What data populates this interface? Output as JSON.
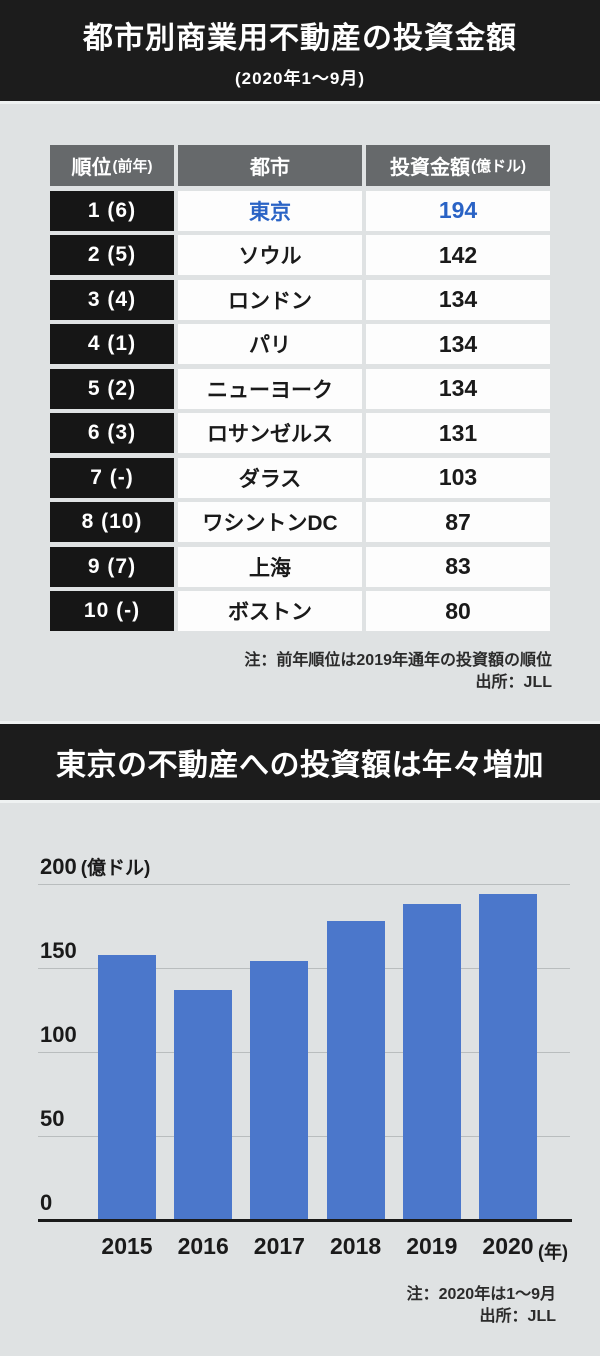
{
  "colors": {
    "page_bg": "#dfe2e3",
    "banner_bg": "#1c1c1c",
    "table_header_bg": "#66696b",
    "rank_cell_bg": "#161616",
    "highlight_blue": "#2a63c5",
    "bar_blue": "#4b77cb"
  },
  "header": {
    "title": "都市別商業用不動産の投資金額",
    "subtitle": "(2020年1～9月)"
  },
  "table": {
    "headers": [
      {
        "main": "順位",
        "sub": "(前年)"
      },
      {
        "main": "都市",
        "sub": ""
      },
      {
        "main": "投資金額",
        "sub": "(億ドル)"
      }
    ],
    "rows": [
      {
        "rank": "1 (6)",
        "city": "東京",
        "value": "194",
        "highlight": true
      },
      {
        "rank": "2 (5)",
        "city": "ソウル",
        "value": "142",
        "highlight": false
      },
      {
        "rank": "3 (4)",
        "city": "ロンドン",
        "value": "134",
        "highlight": false
      },
      {
        "rank": "4 (1)",
        "city": "パリ",
        "value": "134",
        "highlight": false
      },
      {
        "rank": "5 (2)",
        "city": "ニューヨーク",
        "value": "134",
        "highlight": false
      },
      {
        "rank": "6 (3)",
        "city": "ロサンゼルス",
        "value": "131",
        "highlight": false
      },
      {
        "rank": "7 (-)",
        "city": "ダラス",
        "value": "103",
        "highlight": false
      },
      {
        "rank": "8 (10)",
        "city": "ワシントンDC",
        "value": "87",
        "highlight": false
      },
      {
        "rank": "9 (7)",
        "city": "上海",
        "value": "83",
        "highlight": false
      },
      {
        "rank": "10 (-)",
        "city": "ボストン",
        "value": "80",
        "highlight": false
      }
    ],
    "notes": [
      "注：前年順位は2019年通年の投資額の順位",
      "出所：JLL"
    ]
  },
  "chart_data": {
    "type": "bar",
    "title": "東京の不動産への投資額は年々増加",
    "categories": [
      "2015",
      "2016",
      "2017",
      "2018",
      "2019",
      "2020"
    ],
    "values": [
      158,
      137,
      154,
      178,
      188,
      194
    ],
    "ylabel": "(億ドル)",
    "x_suffix": "(年)",
    "ylim": [
      0,
      200
    ],
    "yticks": [
      0,
      50,
      100,
      150,
      200
    ],
    "grid": true,
    "legend": "none",
    "notes": [
      "注：2020年は1～9月",
      "出所：JLL"
    ]
  }
}
